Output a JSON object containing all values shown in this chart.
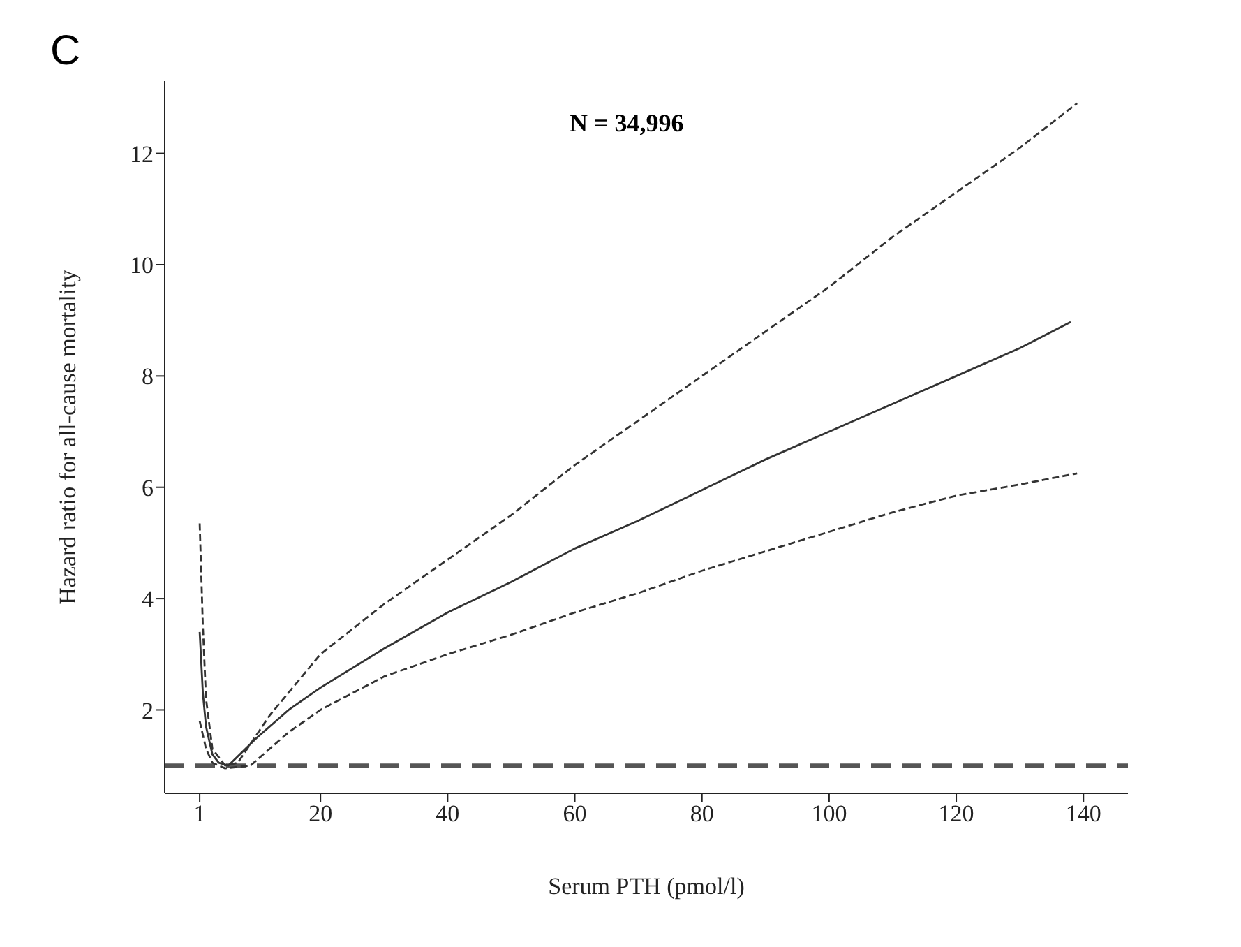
{
  "chart_data": {
    "type": "line",
    "title": "C",
    "xlabel": "Serum PTH (pmol/l)",
    "ylabel": "Hazard ratio for all-cause mortality",
    "annotations": [
      "N = 34,996"
    ],
    "series": [
      {
        "color": "#333333",
        "line_style": "solid",
        "x": [
          1,
          1.5,
          2,
          3,
          4,
          5.5,
          10,
          15,
          20,
          30,
          40,
          50,
          60,
          70,
          80,
          90,
          100,
          110,
          120,
          130,
          138
        ],
        "values": [
          3.4,
          2.3,
          1.7,
          1.2,
          1.05,
          1,
          1.5,
          2.0,
          2.4,
          3.1,
          3.75,
          4.3,
          4.9,
          5.4,
          5.95,
          6.5,
          7.0,
          7.5,
          8.0,
          8.5,
          8.97
        ]
      },
      {
        "color": "#333333",
        "line_style": "dashed",
        "x": [
          1,
          1.5,
          2,
          3,
          5,
          7,
          12,
          20,
          30,
          40,
          50,
          60,
          70,
          80,
          90,
          100,
          110,
          120,
          130,
          139
        ],
        "values": [
          5.35,
          3.5,
          2.2,
          1.3,
          1.0,
          1.05,
          1.9,
          3.0,
          3.9,
          4.7,
          5.5,
          6.4,
          7.2,
          8.0,
          8.8,
          9.6,
          10.5,
          11.3,
          12.1,
          12.9
        ]
      },
      {
        "color": "#333333",
        "line_style": "dashed",
        "x": [
          1,
          2,
          3,
          5,
          9,
          15,
          20,
          30,
          40,
          50,
          60,
          70,
          80,
          90,
          100,
          110,
          120,
          130,
          139
        ],
        "values": [
          1.8,
          1.3,
          1.05,
          0.95,
          1.0,
          1.6,
          2.0,
          2.6,
          3.0,
          3.35,
          3.75,
          4.1,
          4.5,
          4.85,
          5.2,
          5.55,
          5.85,
          6.05,
          6.25
        ]
      }
    ],
    "ref_lines": [
      {
        "axis": "y",
        "value": 1,
        "color": "#555555",
        "line_style": "dashed"
      }
    ],
    "xlim": [
      -4.5,
      147
    ],
    "xticks": [
      1,
      20,
      40,
      60,
      80,
      100,
      120,
      140
    ],
    "ylim": [
      0.5,
      13.3
    ],
    "yticks": [
      2,
      4,
      6,
      8,
      10,
      12
    ],
    "grid": false,
    "legend": false,
    "marker": "none"
  }
}
